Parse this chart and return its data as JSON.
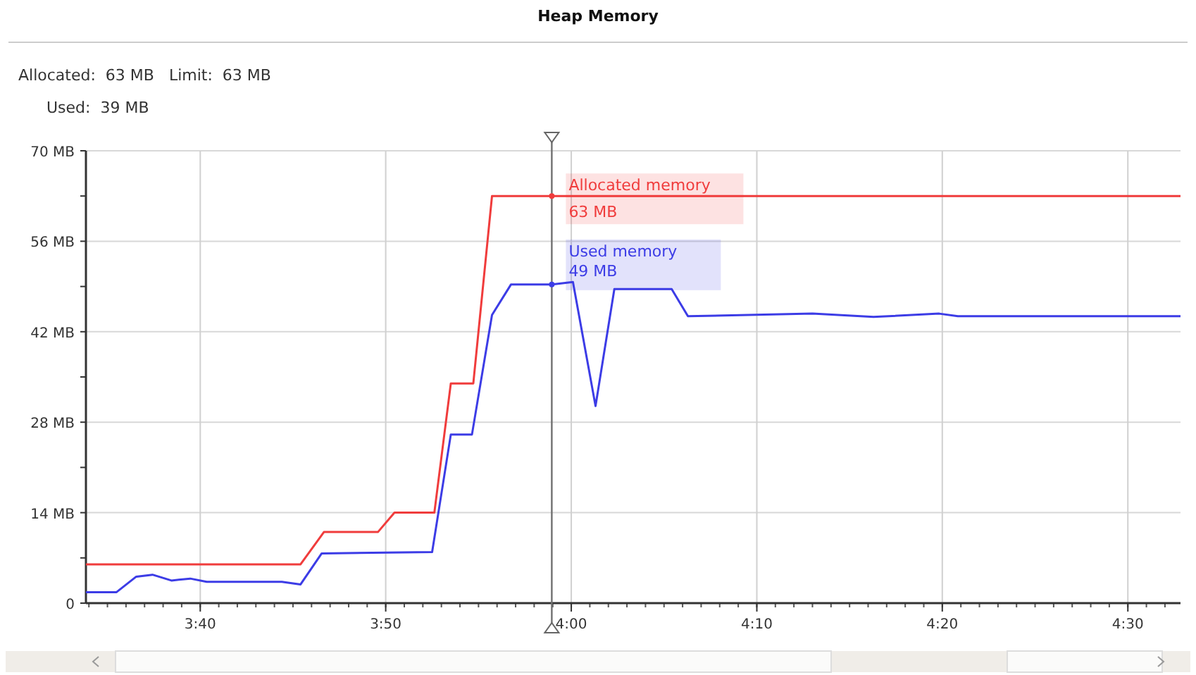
{
  "chart_data": {
    "type": "line",
    "title": "Heap Memory",
    "annotations": [
      "Allocated:  63 MB   Limit:  63 MB",
      "Used:  39 MB",
      {
        "text": "63 MB",
        "x": 3.9825,
        "y": 63
      },
      {
        "text": "49 MB",
        "x": 3.9825,
        "y": 49.3
      }
    ],
    "series": [
      {
        "name": "Allocated memory",
        "color": "#f03c3c",
        "x": [
          3.564,
          3.7568,
          3.7778,
          3.8263,
          3.8412,
          3.877,
          3.8918,
          3.912,
          3.9288,
          4.5473
        ],
        "values": [
          6,
          6,
          11,
          11,
          14,
          14,
          34,
          34,
          63,
          63
        ]
      },
      {
        "name": "Used memory",
        "color": "#3c3ce6",
        "x": [
          3.564,
          3.5915,
          3.6092,
          3.6238,
          3.6408,
          3.6577,
          3.6725,
          3.74,
          3.7568,
          3.7758,
          3.875,
          3.8918,
          3.9108,
          3.9288,
          3.9458,
          3.9825,
          4.0015,
          4.0218,
          4.0387,
          4.0902,
          4.1048,
          4.2167,
          4.2715,
          4.3305,
          4.3473,
          4.5473
        ],
        "values": [
          1.7,
          1.7,
          4.1,
          4.4,
          3.5,
          3.8,
          3.3,
          3.3,
          2.9,
          7.7,
          7.9,
          26.1,
          26.1,
          44.6,
          49.3,
          49.3,
          49.7,
          30.5,
          48.6,
          48.6,
          44.4,
          44.8,
          44.3,
          44.8,
          44.4,
          44.4
        ]
      }
    ],
    "xlim": [
      3.564,
      4.5473
    ],
    "xticks": [
      {
        "value": 3.6667,
        "label": "3:40"
      },
      {
        "value": 3.8333,
        "label": "3:50"
      },
      {
        "value": 4,
        "label": "4:00"
      },
      {
        "value": 4.1667,
        "label": "4:10"
      },
      {
        "value": 4.3333,
        "label": "4:20"
      },
      {
        "value": 4.5,
        "label": "4:30"
      }
    ],
    "ylim": [
      0,
      70
    ],
    "yticks": [
      0,
      {
        "value": 7,
        "label": null
      },
      {
        "value": 14,
        "label": "14 MB"
      },
      {
        "value": 21,
        "label": null
      },
      {
        "value": 28,
        "label": "28 MB"
      },
      {
        "value": 35,
        "label": null
      },
      {
        "value": 42,
        "label": "42 MB"
      },
      {
        "value": 49,
        "label": null
      },
      {
        "value": 56,
        "label": "56 MB"
      },
      {
        "value": 63,
        "label": null
      },
      {
        "value": 70,
        "label": "70 MB"
      }
    ],
    "ref_lines": [
      {
        "axis": "x",
        "value": 3.9825,
        "color": "#707070"
      }
    ],
    "grid": true,
    "legend": "top",
    "marker": "none",
    "line_style": "solid"
  }
}
